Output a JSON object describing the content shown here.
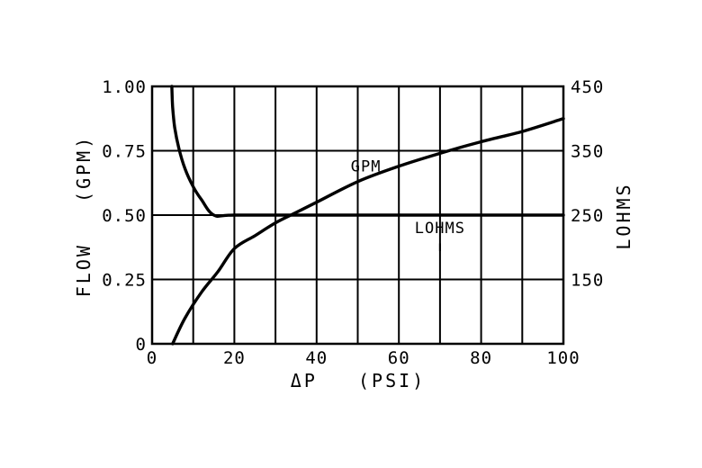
{
  "chart_data": {
    "type": "line",
    "xlabel": "ΔP   (PSI)",
    "ylabel_left": "FLOW   (GPM)",
    "ylabel_right": "LOHMS",
    "x_ticks": [
      0,
      20,
      40,
      60,
      80,
      100
    ],
    "x_tick_labels": [
      "0",
      "20",
      "40",
      "60",
      "80",
      "100"
    ],
    "x_grid_step": 10,
    "xlim": [
      0,
      100
    ],
    "ylim_left": [
      0,
      1.0
    ],
    "left_ticks": [
      0,
      0.25,
      0.5,
      0.75,
      1.0
    ],
    "left_tick_labels": [
      "0",
      "0.25",
      "0.50",
      "0.75",
      "1.00"
    ],
    "right_ticks": [
      0.25,
      0.5,
      0.75,
      1.0
    ],
    "right_tick_labels": [
      "150",
      "250",
      "350",
      "450"
    ],
    "grid": true,
    "series": [
      {
        "name": "GPM",
        "x": [
          5,
          8,
          12,
          16,
          20,
          25,
          30,
          35,
          40,
          50,
          60,
          70,
          80,
          90,
          100
        ],
        "y": [
          0,
          0.1,
          0.2,
          0.28,
          0.37,
          0.42,
          0.47,
          0.51,
          0.55,
          0.63,
          0.69,
          0.74,
          0.785,
          0.825,
          0.875
        ]
      },
      {
        "name": "LOHMS",
        "x": [
          4.8,
          5,
          5.5,
          6.5,
          8,
          10,
          12,
          15,
          20,
          40,
          60,
          80,
          100
        ],
        "y": [
          1.0,
          0.92,
          0.84,
          0.76,
          0.68,
          0.61,
          0.56,
          0.5,
          0.5,
          0.5,
          0.5,
          0.5,
          0.5
        ]
      }
    ]
  }
}
